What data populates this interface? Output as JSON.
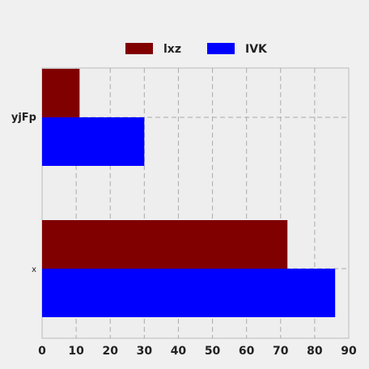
{
  "chart_data": {
    "type": "bar",
    "orientation": "horizontal",
    "categories": [
      "yjFp",
      "x"
    ],
    "series": [
      {
        "name": "lxz",
        "values": [
          11,
          72
        ],
        "color": "#800000"
      },
      {
        "name": "IVK",
        "values": [
          30,
          86
        ],
        "color": "#0000ff"
      }
    ],
    "xlim": [
      0,
      90
    ],
    "xticks": [
      0,
      10,
      20,
      30,
      40,
      50,
      60,
      70,
      80,
      90
    ],
    "grid": true,
    "legend_position": "top-center",
    "background": "#eeeeee"
  }
}
